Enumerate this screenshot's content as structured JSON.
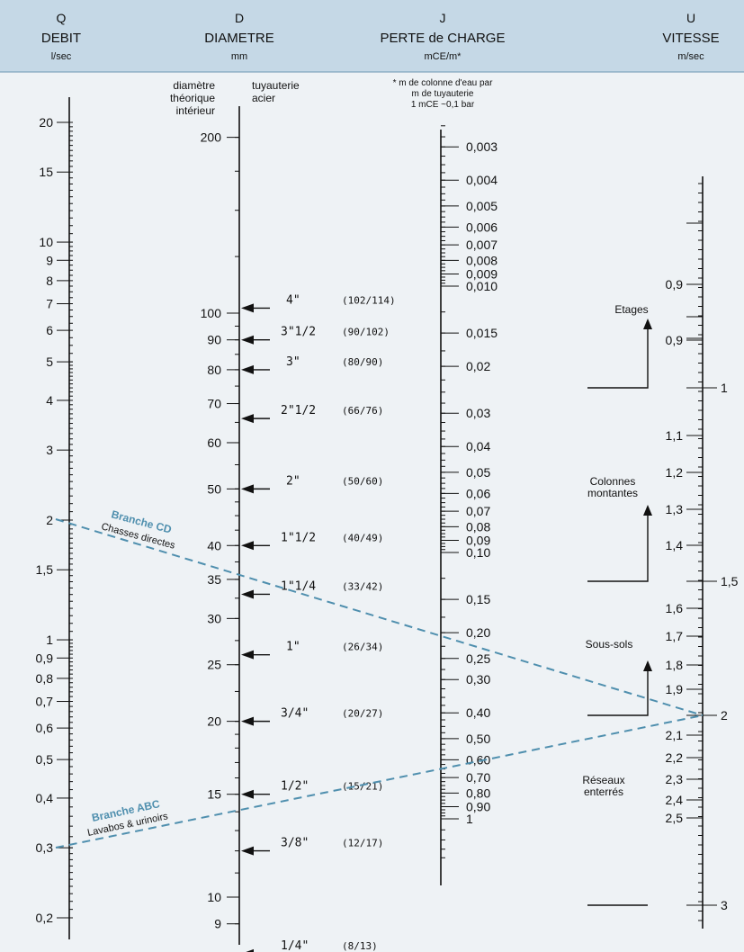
{
  "colors": {
    "background": "#eef2f5",
    "header_band": "#c5d8e6",
    "branch": "#4f8fae",
    "ink": "#111111"
  },
  "header": {
    "q": {
      "letter": "Q",
      "title": "DEBIT",
      "unit": "l/sec"
    },
    "d": {
      "letter": "D",
      "title": "DIAMETRE",
      "unit": "mm"
    },
    "j": {
      "letter": "J",
      "title": "PERTE de CHARGE",
      "unit": "mCE/m*"
    },
    "u": {
      "letter": "U",
      "title": "VITESSE",
      "unit": "m/sec"
    }
  },
  "d_headings": {
    "theoretical": [
      "diamètre",
      "théorique",
      "intérieur"
    ],
    "steel": [
      "tuyauterie",
      "acier"
    ]
  },
  "j_note": [
    "* m de colonne d'eau par",
    "m de tuyauterie",
    "1 mCE ~0,1 bar"
  ],
  "q_axis": {
    "labels": [
      "20",
      "15",
      "10",
      "9",
      "8",
      "7",
      "6",
      "5",
      "4",
      "3",
      "2",
      "1,5",
      "1",
      "0,9",
      "0,8",
      "0,7",
      "0,6",
      "0,5",
      "0,4",
      "0,3",
      "0,2"
    ],
    "values": [
      20,
      15,
      10,
      9,
      8,
      7,
      6,
      5,
      4,
      3,
      2,
      1.5,
      1,
      0.9,
      0.8,
      0.7,
      0.6,
      0.5,
      0.4,
      0.3,
      0.2
    ]
  },
  "d_axis": {
    "labels": [
      "200",
      "100",
      "90",
      "80",
      "70",
      "60",
      "50",
      "40",
      "35",
      "30",
      "25",
      "20",
      "15",
      "10",
      "9"
    ],
    "values": [
      200,
      100,
      90,
      80,
      70,
      60,
      50,
      40,
      35,
      30,
      25,
      20,
      15,
      10,
      9
    ]
  },
  "pipes": [
    {
      "size": "4\"",
      "dims": "(102/114)",
      "value": 102
    },
    {
      "size": "3\"1/2",
      "dims": "(90/102)",
      "value": 90
    },
    {
      "size": "3\"",
      "dims": "(80/90)",
      "value": 80
    },
    {
      "size": "2\"1/2",
      "dims": "(66/76)",
      "value": 66
    },
    {
      "size": "2\"",
      "dims": "(50/60)",
      "value": 50
    },
    {
      "size": "1\"1/2",
      "dims": "(40/49)",
      "value": 40
    },
    {
      "size": "1\"1/4",
      "dims": "(33/42)",
      "value": 33
    },
    {
      "size": "1\"",
      "dims": "(26/34)",
      "value": 26
    },
    {
      "size": "3/4\"",
      "dims": "(20/27)",
      "value": 20
    },
    {
      "size": "1/2\"",
      "dims": "(15/21)",
      "value": 15
    },
    {
      "size": "3/8\"",
      "dims": "(12/17)",
      "value": 12
    },
    {
      "size": "1/4\"",
      "dims": "(8/13)",
      "value": 8
    }
  ],
  "j_axis": {
    "labels": [
      "0,003",
      "0,004",
      "0,005",
      "0,006",
      "0,007",
      "0,008",
      "0,009",
      "0,010",
      "0,015",
      "0,02",
      "0,03",
      "0,04",
      "0,05",
      "0,06",
      "0,07",
      "0,08",
      "0,09",
      "0,10",
      "0,15",
      "0,20",
      "0,25",
      "0,30",
      "0,40",
      "0,50",
      "0,60",
      "0,70",
      "0,80",
      "0,90",
      "1"
    ],
    "values": [
      0.003,
      0.004,
      0.005,
      0.006,
      0.007,
      0.008,
      0.009,
      0.01,
      0.015,
      0.02,
      0.03,
      0.04,
      0.05,
      0.06,
      0.07,
      0.08,
      0.09,
      0.1,
      0.15,
      0.2,
      0.25,
      0.3,
      0.4,
      0.5,
      0.6,
      0.7,
      0.8,
      0.9,
      1
    ]
  },
  "u_axis": {
    "left_labels": [
      "0,9",
      "0,9",
      "1,1",
      "1,2",
      "1,3",
      "1,4",
      "1,6",
      "1,7",
      "1,8",
      "1,9",
      "2,1",
      "2,2",
      "2,3",
      "2,4",
      "2,5"
    ],
    "right_labels": [
      "1",
      "1,5",
      "2",
      "3"
    ]
  },
  "zones": [
    "Etages",
    "Colonnes montantes",
    "Sous-sols",
    "Réseaux enterrés"
  ],
  "branches": [
    {
      "name": "Branche CD",
      "sub": "Chasses directes",
      "q": 2,
      "u": 2
    },
    {
      "name": "Branche ABC",
      "sub": "Lavabos & urinoirs",
      "q": 0.3,
      "u": 2
    }
  ]
}
